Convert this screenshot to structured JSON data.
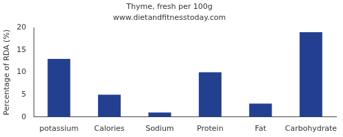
{
  "chart_data": {
    "type": "bar",
    "title": "Thyme, fresh per 100g",
    "subtitle": "www.dietandfitnesstoday.com",
    "y_label": "Percentage of RDA (%)",
    "categories": [
      "potassium",
      "Calories",
      "Sodium",
      "Protein",
      "Fat",
      "Carbohydrate"
    ],
    "values": [
      13,
      5,
      1,
      10,
      3,
      19
    ],
    "color": "#233f8f",
    "ylim": [
      0,
      20
    ],
    "yticks": [
      0,
      5,
      10,
      15,
      20
    ],
    "grid": false
  }
}
